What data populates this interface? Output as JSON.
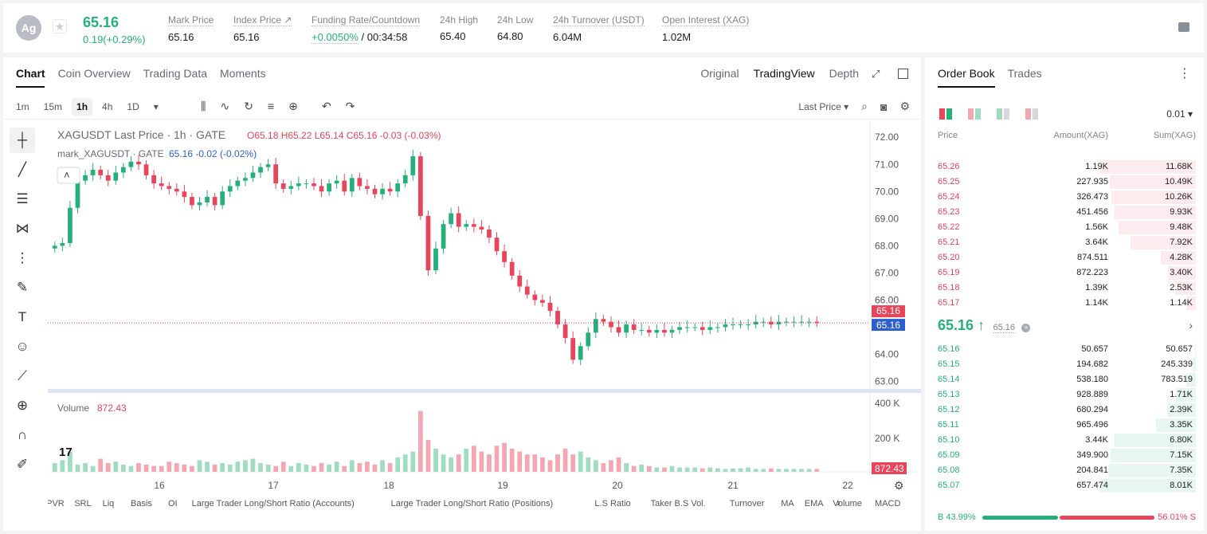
{
  "header": {
    "coin_logo": "Ag",
    "price": "65.16",
    "change": "0.19(+0.29%)",
    "stats": [
      {
        "label": "Mark Price",
        "value": "65.16"
      },
      {
        "label": "Index Price ↗",
        "value": "65.16"
      },
      {
        "label": "Funding Rate/Countdown",
        "value_green": "+0.0050%",
        "value": " / 00:34:58"
      },
      {
        "label": "24h High",
        "value": "65.40"
      },
      {
        "label": "24h Low",
        "value": "64.80"
      },
      {
        "label": "24h Turnover (USDT)",
        "value": "6.04M"
      },
      {
        "label": "Open Interest (XAG)",
        "value": "1.02M"
      }
    ]
  },
  "chart_panel": {
    "tabs": [
      "Chart",
      "Coin Overview",
      "Trading Data",
      "Moments"
    ],
    "views": [
      "Original",
      "TradingView",
      "Depth"
    ],
    "intervals": [
      "1m",
      "15m",
      "1h",
      "4h",
      "1D"
    ],
    "active_interval": "1h",
    "price_type": "Last Price",
    "legend_main": "XAGUSDT Last Price · 1h · GATE",
    "ohlc": {
      "o": "65.18",
      "h": "65.22",
      "l": "65.14",
      "c": "65.16",
      "chg": "-0.03 (-0.03%)"
    },
    "legend_mark": "mark_XAGUSDT · GATE",
    "mark_val": "65.16 -0.02 (-0.02%)",
    "volume_label": "Volume",
    "volume_value": "872.43",
    "indicators": [
      "LPVR",
      "SRL",
      "Liq",
      "Basis",
      "OI",
      "Large Trader Long/Short Ratio (Accounts)",
      "Large Trader Long/Short Ratio (Positions)",
      "L.S Ratio",
      "Taker B.S Vol.",
      "Turnover",
      "MA",
      "EMA",
      "Volume",
      "MACD"
    ]
  },
  "chart_data": {
    "type": "candlestick",
    "y_ticks": [
      "72.00",
      "71.00",
      "70.00",
      "69.00",
      "68.00",
      "67.00",
      "66.00",
      "64.00",
      "63.00"
    ],
    "ylim": [
      62.9,
      72.3
    ],
    "vol_ticks": [
      "400 K",
      "200 K"
    ],
    "x_ticks": [
      "16",
      "17",
      "18",
      "19",
      "20",
      "21",
      "22"
    ],
    "last_price_tag": "65.16",
    "mark_price_tag": "65.16",
    "vol_tag": "872.43",
    "closes": [
      68.0,
      68.1,
      69.4,
      70.4,
      70.6,
      70.8,
      70.6,
      70.4,
      70.7,
      70.9,
      71.1,
      71.0,
      70.6,
      70.3,
      70.2,
      70.1,
      70.0,
      69.8,
      69.5,
      69.6,
      69.8,
      69.5,
      70.0,
      70.2,
      70.4,
      70.5,
      70.7,
      70.9,
      71.0,
      70.3,
      70.1,
      70.2,
      70.3,
      70.3,
      70.2,
      70.0,
      70.3,
      70.4,
      70.0,
      70.5,
      70.2,
      70.1,
      69.9,
      70.1,
      70.0,
      70.3,
      70.6,
      71.3,
      69.1,
      67.1,
      67.9,
      68.8,
      69.2,
      68.7,
      68.8,
      68.7,
      68.6,
      68.3,
      67.8,
      67.4,
      66.9,
      66.5,
      66.2,
      66.0,
      65.9,
      65.6,
      65.1,
      64.6,
      63.8,
      64.3,
      64.8,
      65.3,
      65.2,
      65.0,
      64.8,
      65.1,
      64.9,
      64.9,
      64.8,
      64.9,
      64.8,
      64.9,
      65.0,
      65.0,
      65.0,
      64.9,
      65.0,
      65.0,
      65.1,
      65.1,
      65.1,
      65.1,
      65.2,
      65.2,
      65.1,
      65.2,
      65.2,
      65.2,
      65.2,
      65.2,
      65.16
    ],
    "volumes": [
      30,
      40,
      70,
      25,
      30,
      20,
      45,
      30,
      35,
      25,
      20,
      30,
      25,
      20,
      20,
      35,
      30,
      25,
      20,
      40,
      35,
      25,
      30,
      25,
      35,
      40,
      45,
      30,
      25,
      20,
      35,
      20,
      30,
      25,
      20,
      30,
      25,
      35,
      20,
      40,
      30,
      35,
      25,
      40,
      30,
      50,
      60,
      70,
      210,
      110,
      80,
      60,
      50,
      60,
      80,
      90,
      70,
      60,
      90,
      100,
      80,
      70,
      60,
      60,
      50,
      40,
      60,
      80,
      60,
      70,
      50,
      40,
      30,
      40,
      50,
      30,
      20,
      25,
      20,
      15,
      15,
      20,
      15,
      15,
      15,
      12,
      15,
      12,
      10,
      12,
      12,
      15,
      10,
      10,
      12,
      10,
      10,
      10,
      10,
      10,
      10
    ]
  },
  "order_book": {
    "tabs": [
      "Order Book",
      "Trades"
    ],
    "precision": "0.01 ▾",
    "headers": [
      "Price",
      "Amount(XAG)",
      "Sum(XAG)"
    ],
    "asks": [
      {
        "p": "65.26",
        "a": "1.19K",
        "s": "11.68K",
        "w": 100
      },
      {
        "p": "65.25",
        "a": "227.935",
        "s": "10.49K",
        "w": 90
      },
      {
        "p": "65.24",
        "a": "326.473",
        "s": "10.26K",
        "w": 88
      },
      {
        "p": "65.23",
        "a": "451.456",
        "s": "9.93K",
        "w": 85
      },
      {
        "p": "65.22",
        "a": "1.56K",
        "s": "9.48K",
        "w": 81
      },
      {
        "p": "65.21",
        "a": "3.64K",
        "s": "7.92K",
        "w": 68
      },
      {
        "p": "65.20",
        "a": "874.511",
        "s": "4.28K",
        "w": 37
      },
      {
        "p": "65.19",
        "a": "872.223",
        "s": "3.40K",
        "w": 29
      },
      {
        "p": "65.18",
        "a": "1.39K",
        "s": "2.53K",
        "w": 22
      },
      {
        "p": "65.17",
        "a": "1.14K",
        "s": "1.14K",
        "w": 10
      }
    ],
    "mid_price": "65.16 ↑",
    "mid_mark": "65.16",
    "bids": [
      {
        "p": "65.16",
        "a": "50.657",
        "s": "50.657",
        "w": 1
      },
      {
        "p": "65.15",
        "a": "194.682",
        "s": "245.339",
        "w": 3
      },
      {
        "p": "65.14",
        "a": "538.180",
        "s": "783.519",
        "w": 10
      },
      {
        "p": "65.13",
        "a": "928.889",
        "s": "1.71K",
        "w": 21
      },
      {
        "p": "65.12",
        "a": "680.294",
        "s": "2.39K",
        "w": 30
      },
      {
        "p": "65.11",
        "a": "965.496",
        "s": "3.35K",
        "w": 42
      },
      {
        "p": "65.10",
        "a": "3.44K",
        "s": "6.80K",
        "w": 85
      },
      {
        "p": "65.09",
        "a": "349.900",
        "s": "7.15K",
        "w": 89
      },
      {
        "p": "65.08",
        "a": "204.841",
        "s": "7.35K",
        "w": 92
      },
      {
        "p": "65.07",
        "a": "657.474",
        "s": "8.01K",
        "w": 100
      }
    ],
    "buy_ratio": "B 43.99%",
    "sell_ratio": "56.01% S"
  },
  "colors": {
    "up": "#25b07a",
    "down": "#e8455a",
    "up_vol": "#9fdcc0",
    "down_vol": "#f4a7b1"
  }
}
